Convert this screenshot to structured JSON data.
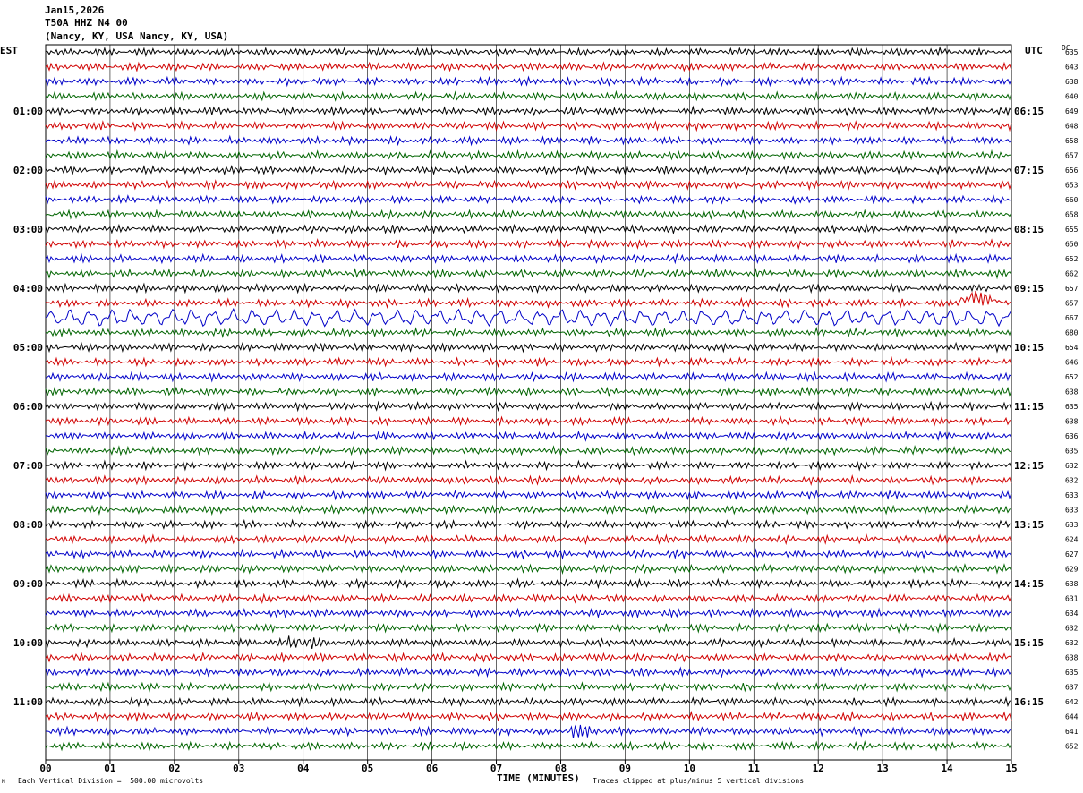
{
  "header": {
    "date": "Jan15,2026",
    "channel": "T50A HHZ N4 00",
    "location": "(Nancy, KY, USA Nancy, KY, USA)"
  },
  "labels": {
    "left_tz": "EST",
    "right_tz": "UTC",
    "dc": "DC"
  },
  "footer": {
    "xlabel": "TIME (MINUTES)",
    "scale_note": "Each Vertical Division =  500.00 microvolts",
    "clip_note": "Traces clipped at plus/minus 5 vertical divisions",
    "mark": "M"
  },
  "colors": {
    "trace_cycle": [
      "#000000",
      "#d00000",
      "#0000c8",
      "#006400"
    ],
    "grid": "#000000"
  },
  "chart_data": {
    "type": "line",
    "title": "",
    "xlabel": "TIME (MINUTES)",
    "xlim": [
      0,
      15
    ],
    "x_ticks": [
      "00",
      "01",
      "02",
      "03",
      "04",
      "05",
      "06",
      "07",
      "08",
      "09",
      "10",
      "11",
      "12",
      "13",
      "14",
      "15"
    ],
    "rows": 48,
    "left_hour_labels": [
      {
        "row": 4,
        "text": "01:00"
      },
      {
        "row": 8,
        "text": "02:00"
      },
      {
        "row": 12,
        "text": "03:00"
      },
      {
        "row": 16,
        "text": "04:00"
      },
      {
        "row": 20,
        "text": "05:00"
      },
      {
        "row": 24,
        "text": "06:00"
      },
      {
        "row": 28,
        "text": "07:00"
      },
      {
        "row": 32,
        "text": "08:00"
      },
      {
        "row": 36,
        "text": "09:00"
      },
      {
        "row": 40,
        "text": "10:00"
      },
      {
        "row": 44,
        "text": "11:00"
      }
    ],
    "right_hour_labels": [
      {
        "row": 4,
        "text": "06:15"
      },
      {
        "row": 8,
        "text": "07:15"
      },
      {
        "row": 12,
        "text": "08:15"
      },
      {
        "row": 16,
        "text": "09:15"
      },
      {
        "row": 20,
        "text": "10:15"
      },
      {
        "row": 24,
        "text": "11:15"
      },
      {
        "row": 28,
        "text": "12:15"
      },
      {
        "row": 32,
        "text": "13:15"
      },
      {
        "row": 36,
        "text": "14:15"
      },
      {
        "row": 40,
        "text": "15:15"
      },
      {
        "row": 44,
        "text": "16:15"
      }
    ],
    "dc_values": [
      "635",
      "643",
      "638",
      "640",
      "649",
      "648",
      "658",
      "657",
      "656",
      "653",
      "660",
      "658",
      "655",
      "650",
      "652",
      "662",
      "657",
      "657",
      "667",
      "680",
      "654",
      "646",
      "652",
      "638",
      "635",
      "638",
      "636",
      "635",
      "632",
      "632",
      "633",
      "633",
      "633",
      "624",
      "627",
      "629",
      "638",
      "631",
      "634",
      "632",
      "632",
      "638",
      "635",
      "637",
      "642",
      "644",
      "641",
      "652"
    ],
    "events": [
      {
        "row": 17,
        "x_minutes": 14.4,
        "description_in_chart": ""
      },
      {
        "row": 18,
        "x_minutes": 0.5
      },
      {
        "row": 40,
        "x_minutes": 4.0
      },
      {
        "row": 46,
        "x_minutes": 8.4
      }
    ]
  }
}
